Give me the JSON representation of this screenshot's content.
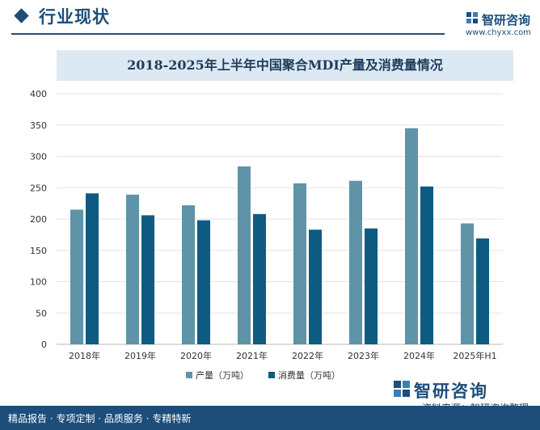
{
  "header": {
    "section_title": "行业现状",
    "logo_text": "智研咨询",
    "logo_url": "www.chyxx.com"
  },
  "footer": {
    "tags": "精品报告 · 专项定制 · 品质服务 · 专精特新",
    "source": "资料来源：智研咨询整理",
    "brand": "智研咨询"
  },
  "colors": {
    "brand_blue": "#1d4e7a",
    "production": "#5e93a8",
    "consumption": "#0e5b82"
  },
  "chart_data": {
    "type": "bar",
    "title": "2018-2025年上半年中国聚合MDI产量及消费量情况",
    "categories": [
      "2018年",
      "2019年",
      "2020年",
      "2021年",
      "2022年",
      "2023年",
      "2024年",
      "2025年H1"
    ],
    "series": [
      {
        "name": "产量（万吨）",
        "values": [
          215,
          239,
          222,
          284,
          257,
          261,
          345,
          193
        ]
      },
      {
        "name": "消费量（万吨）",
        "values": [
          241,
          206,
          198,
          208,
          183,
          185,
          252,
          169
        ]
      }
    ],
    "ylim": [
      0,
      400
    ],
    "yticks": [
      0,
      50,
      100,
      150,
      200,
      250,
      300,
      350,
      400
    ],
    "grid": true,
    "legend_position": "bottom-center"
  }
}
